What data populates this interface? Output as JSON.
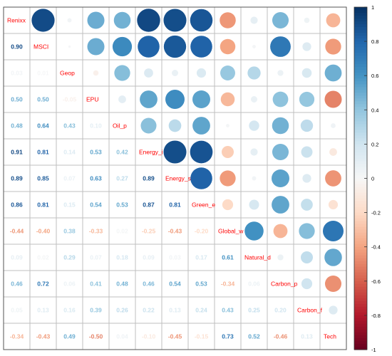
{
  "chart_data": {
    "type": "heatmap",
    "title": "",
    "variables": [
      "Renixx",
      "MSCI",
      "Geop",
      "EPU",
      "Oil_p",
      "Energy_i",
      "Energy_s",
      "Green_e",
      "Global_w",
      "Natural_d",
      "Carbon_p",
      "Carbon_f",
      "Tech"
    ],
    "matrix": [
      [
        1.0,
        0.9,
        0.03,
        0.5,
        0.48,
        0.91,
        0.89,
        0.86,
        -0.44,
        0.09,
        0.46,
        0.05,
        -0.34
      ],
      [
        0.9,
        1.0,
        0.01,
        0.5,
        0.64,
        0.81,
        0.85,
        0.81,
        -0.4,
        0.02,
        0.72,
        0.13,
        -0.43
      ],
      [
        0.03,
        0.01,
        1.0,
        -0.05,
        0.43,
        0.14,
        0.07,
        0.15,
        0.38,
        0.29,
        0.06,
        0.16,
        0.49
      ],
      [
        0.5,
        0.5,
        -0.05,
        1.0,
        0.1,
        0.53,
        0.63,
        0.54,
        -0.33,
        0.07,
        0.41,
        0.39,
        -0.5
      ],
      [
        0.48,
        0.64,
        0.43,
        0.1,
        1.0,
        0.42,
        0.27,
        0.53,
        0.02,
        0.18,
        0.48,
        0.26,
        0.04
      ],
      [
        0.91,
        0.81,
        0.14,
        0.53,
        0.42,
        1.0,
        0.89,
        0.87,
        -0.25,
        0.09,
        0.46,
        0.22,
        -0.1
      ],
      [
        0.89,
        0.85,
        0.07,
        0.63,
        0.27,
        0.89,
        1.0,
        0.81,
        -0.43,
        0.03,
        0.54,
        0.13,
        -0.45
      ],
      [
        0.86,
        0.81,
        0.15,
        0.54,
        0.53,
        0.87,
        0.81,
        1.0,
        -0.2,
        0.17,
        0.53,
        0.24,
        -0.15
      ],
      [
        -0.44,
        -0.4,
        0.38,
        -0.33,
        0.02,
        -0.25,
        -0.43,
        -0.2,
        1.0,
        0.61,
        -0.34,
        0.43,
        0.73
      ],
      [
        0.09,
        0.02,
        0.29,
        0.07,
        0.18,
        0.09,
        0.03,
        0.17,
        0.61,
        1.0,
        0.06,
        0.25,
        0.52
      ],
      [
        0.46,
        0.72,
        0.06,
        0.41,
        0.48,
        0.46,
        0.54,
        0.53,
        -0.34,
        0.06,
        1.0,
        0.2,
        -0.46
      ],
      [
        0.05,
        0.13,
        0.16,
        0.39,
        0.26,
        0.22,
        0.13,
        0.24,
        0.43,
        0.25,
        0.2,
        1.0,
        0.13
      ],
      [
        -0.34,
        -0.43,
        0.49,
        -0.5,
        0.04,
        -0.1,
        -0.45,
        -0.15,
        0.73,
        0.52,
        -0.46,
        0.13,
        1.0
      ]
    ],
    "lower_triangle": "numbers",
    "upper_triangle": "circles",
    "diagonal": "variable names",
    "color_scale": {
      "min": -1,
      "max": 1,
      "ticks": [
        "1",
        "0.8",
        "0.6",
        "0.4",
        "0.2",
        "0",
        "-0.2",
        "-0.4",
        "-0.6",
        "-0.8",
        "-1"
      ],
      "negative_color": "#67001F",
      "neutral_color": "#F7F7F7",
      "positive_color": "#053061",
      "placement": "right"
    },
    "grid": true
  },
  "colors": {
    "label": "#FF0000",
    "grid": "#BFBFBF",
    "border": "#555555"
  }
}
